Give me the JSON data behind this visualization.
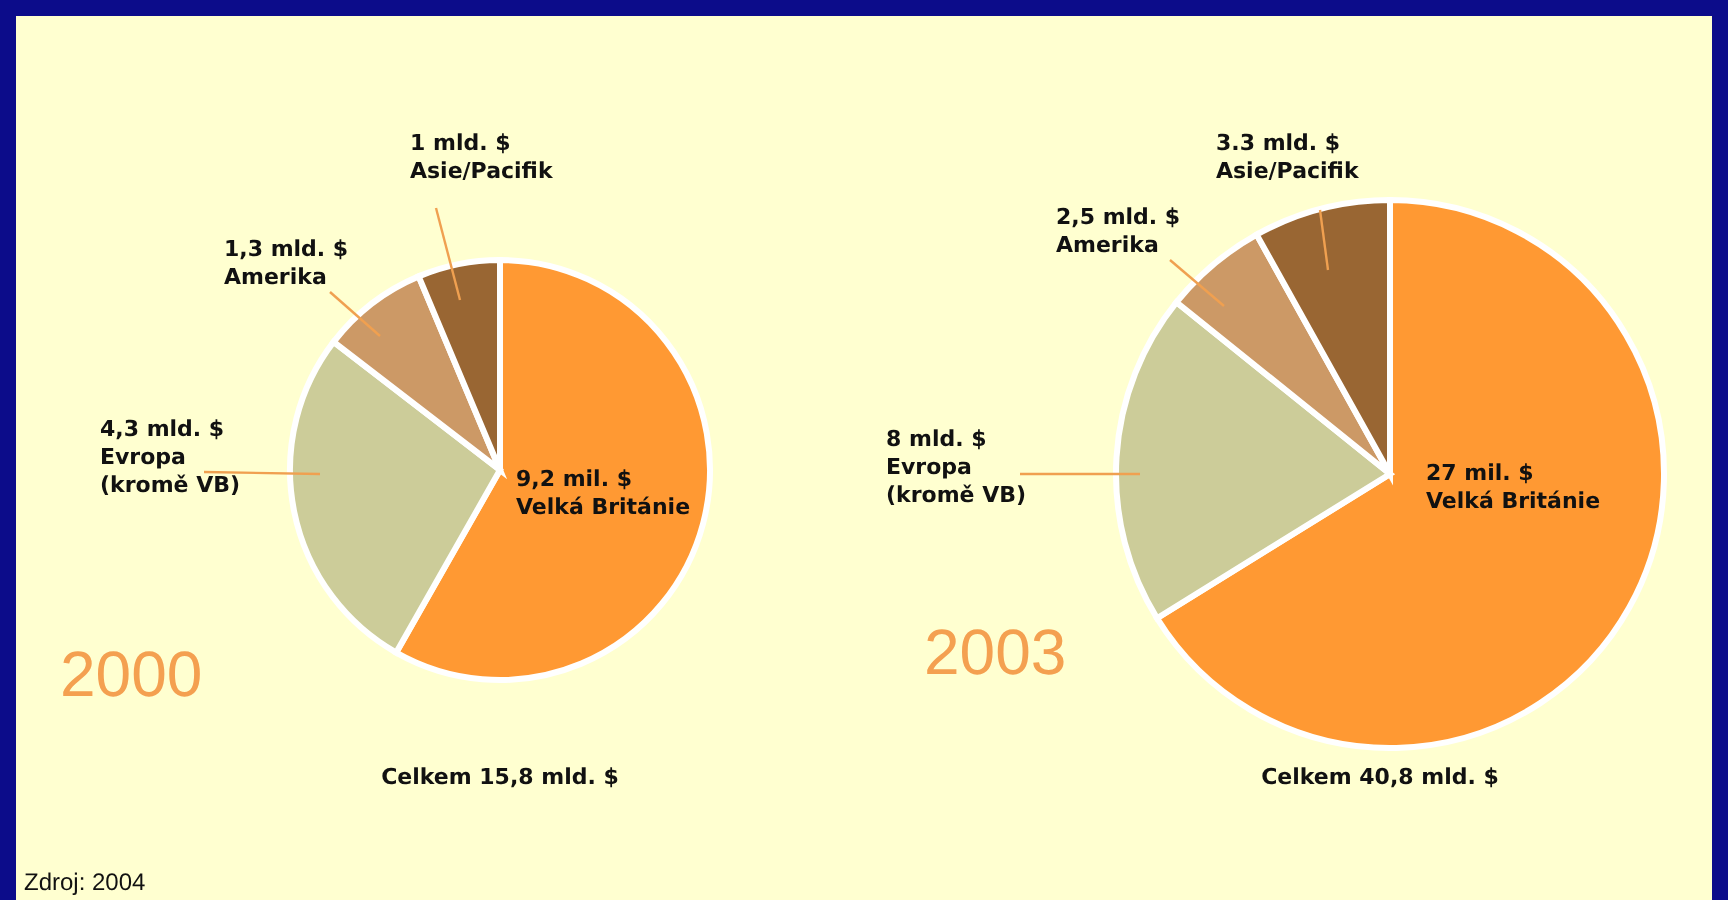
{
  "chart_data": [
    {
      "type": "pie",
      "title": "2000",
      "categories": [
        "Velká Británie",
        "Evropa (kromě VB)",
        "Amerika",
        "Asie/Pacifik"
      ],
      "values": [
        9.2,
        4.3,
        1.3,
        1
      ],
      "value_labels": [
        "9,2 mil. $",
        "4,3 mld. $",
        "1,3 mld. $",
        "1 mld. $"
      ],
      "colors": [
        "#ff9933",
        "#cccc99",
        "#cc9966",
        "#996633"
      ],
      "annotations": [
        "Celkem 15,8 mld. $",
        "Zdroj: 2004"
      ]
    },
    {
      "type": "pie",
      "title": "2003",
      "categories": [
        "Velká Británie",
        "Evropa (kromě VB)",
        "Amerika",
        "Asie/Pacifik"
      ],
      "values": [
        27,
        8,
        2.5,
        3.3
      ],
      "value_labels": [
        "27 mil. $",
        "8 mld. $",
        "2,5 mld. $",
        "3.3 mld. $"
      ],
      "colors": [
        "#ff9933",
        "#cccc99",
        "#cc9966",
        "#996633"
      ],
      "annotations": [
        "Celkem 40,8 mld. $"
      ]
    }
  ]
}
